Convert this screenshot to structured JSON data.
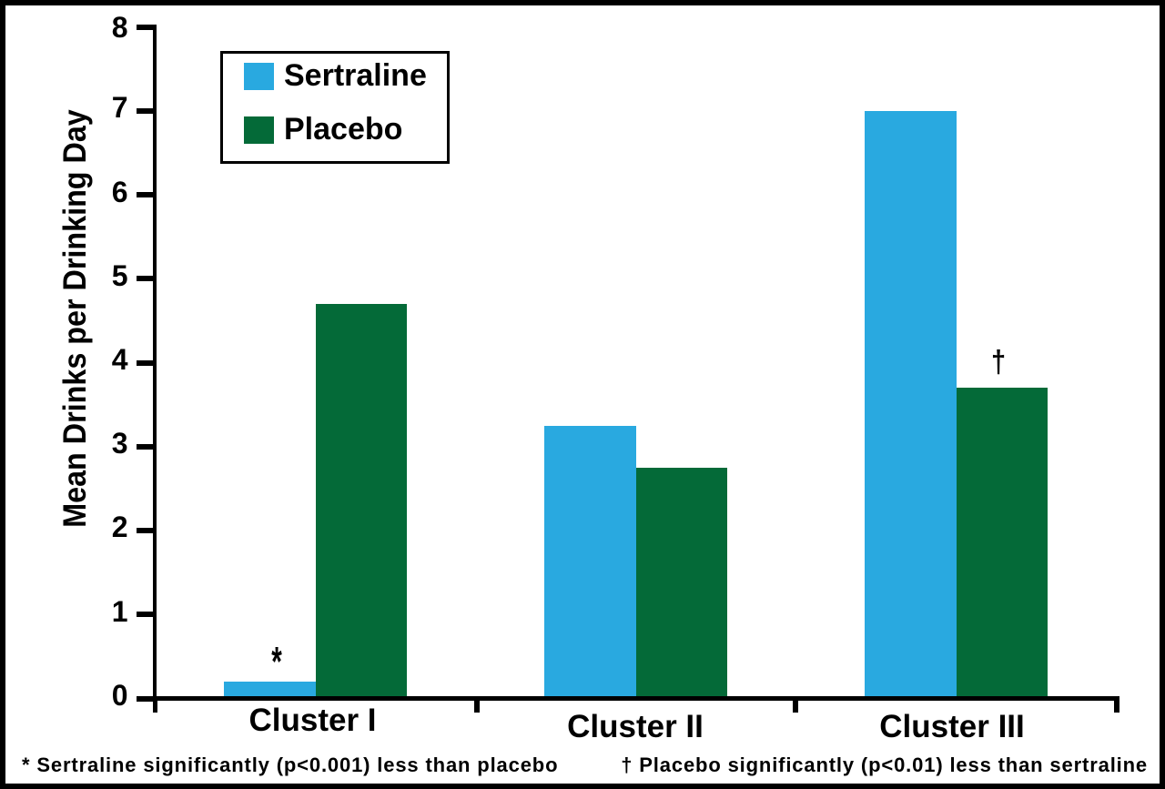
{
  "figure": {
    "background": "#ffffff",
    "frame_color": "#000000"
  },
  "chart_data": {
    "type": "bar",
    "title": "",
    "categories": [
      "Cluster I",
      "Cluster II",
      "Cluster III"
    ],
    "series": [
      {
        "name": "Sertraline",
        "color": "#29A9E0",
        "values": [
          0.2,
          3.25,
          7.0
        ]
      },
      {
        "name": "Placebo",
        "color": "#046A38",
        "values": [
          4.7,
          2.75,
          3.7
        ]
      }
    ],
    "xlabel": "",
    "ylabel": "Mean Drinks per Drinking Day",
    "ylim": [
      0,
      8
    ],
    "yticks": [
      0,
      1,
      2,
      3,
      4,
      5,
      6,
      7,
      8
    ],
    "grid": false,
    "legend_position": "upper-left",
    "annotations": [
      {
        "symbol": "*",
        "category": "Cluster I",
        "series": "Sertraline"
      },
      {
        "symbol": "†",
        "category": "Cluster III",
        "series": "Placebo"
      }
    ]
  },
  "footnotes": {
    "left": "* Sertraline significantly (p<0.001) less than placebo",
    "right": "† Placebo significantly (p<0.01) less than sertraline"
  }
}
